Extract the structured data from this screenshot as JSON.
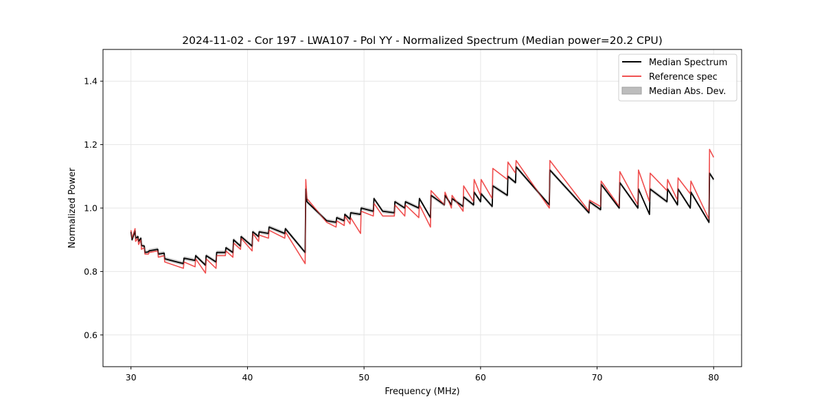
{
  "chart_data": {
    "type": "line",
    "title": "2024-11-02 - Cor 197 - LWA107 - Pol YY - Normalized Spectrum (Median power=20.2 CPU)",
    "xlabel": "Frequency (MHz)",
    "ylabel": "Normalized Power",
    "xlim": [
      27.6,
      82.4
    ],
    "ylim": [
      0.5,
      1.5
    ],
    "x_ticks": [
      30,
      40,
      50,
      60,
      70,
      80
    ],
    "x_tick_labels": [
      "30",
      "40",
      "50",
      "60",
      "70",
      "80"
    ],
    "y_ticks": [
      0.6,
      0.8,
      1.0,
      1.2,
      1.4
    ],
    "y_tick_labels": [
      "0.6",
      "0.8",
      "1.0",
      "1.2",
      "1.4"
    ],
    "grid": true,
    "legend_position": "top-right",
    "legend": {
      "median": "Median Spectrum",
      "reference": "Reference spec",
      "mad": "Median Abs. Dev."
    },
    "colors": {
      "median": "#000000",
      "reference": "#f05050",
      "mad": "#bdbdbd",
      "grid": "#e6e6e6"
    },
    "mad_halfwidth": 0.006,
    "series": [
      {
        "name": "Median Spectrum",
        "x": [
          30.0,
          30.1,
          30.35,
          30.4,
          30.6,
          30.65,
          30.85,
          30.9,
          31.15,
          31.2,
          31.5,
          31.55,
          32.3,
          32.35,
          32.85,
          32.9,
          34.5,
          34.55,
          35.5,
          35.55,
          36.4,
          36.45,
          37.3,
          37.35,
          38.1,
          38.15,
          38.75,
          38.8,
          39.4,
          39.45,
          40.4,
          40.45,
          40.95,
          41.0,
          41.8,
          41.85,
          43.2,
          43.25,
          44.95,
          45.0,
          45.1,
          46.8,
          47.6,
          47.65,
          48.3,
          48.35,
          48.8,
          48.85,
          49.7,
          49.75,
          50.8,
          50.85,
          51.6,
          52.6,
          52.65,
          53.5,
          53.55,
          54.7,
          54.75,
          55.7,
          55.75,
          56.9,
          56.95,
          57.5,
          57.55,
          58.5,
          58.55,
          59.4,
          59.45,
          60.0,
          60.05,
          61.0,
          61.05,
          62.3,
          62.35,
          63.0,
          63.05,
          65.9,
          65.95,
          69.3,
          69.35,
          70.3,
          70.35,
          71.9,
          71.95,
          73.5,
          73.55,
          74.5,
          74.55,
          76.0,
          76.05,
          76.9,
          76.95,
          78.0,
          78.05,
          79.6,
          79.65,
          80.0
        ],
        "values": [
          0.925,
          0.9,
          0.928,
          0.905,
          0.91,
          0.895,
          0.905,
          0.882,
          0.88,
          0.86,
          0.862,
          0.865,
          0.87,
          0.855,
          0.858,
          0.84,
          0.825,
          0.842,
          0.835,
          0.85,
          0.82,
          0.85,
          0.83,
          0.86,
          0.86,
          0.875,
          0.86,
          0.9,
          0.88,
          0.91,
          0.88,
          0.925,
          0.91,
          0.925,
          0.92,
          0.94,
          0.92,
          0.935,
          0.86,
          1.06,
          1.02,
          0.96,
          0.955,
          0.97,
          0.96,
          0.98,
          0.965,
          0.985,
          0.98,
          1.0,
          0.99,
          1.03,
          0.99,
          0.985,
          1.02,
          1.0,
          1.02,
          1.0,
          1.03,
          0.97,
          1.04,
          1.01,
          1.04,
          1.01,
          1.03,
          1.005,
          1.035,
          1.01,
          1.05,
          1.02,
          1.045,
          1.005,
          1.07,
          1.04,
          1.1,
          1.08,
          1.13,
          1.01,
          1.12,
          0.985,
          1.02,
          0.995,
          1.075,
          1.0,
          1.08,
          1.0,
          1.06,
          0.98,
          1.06,
          1.02,
          1.06,
          1.01,
          1.06,
          1.0,
          1.05,
          0.955,
          1.11,
          1.09
        ]
      },
      {
        "name": "Reference spec",
        "x": [
          30.0,
          30.1,
          30.35,
          30.4,
          30.6,
          30.65,
          30.85,
          30.9,
          31.15,
          31.2,
          31.5,
          31.55,
          32.3,
          32.35,
          32.85,
          32.9,
          34.5,
          34.55,
          35.5,
          35.55,
          36.4,
          36.45,
          37.3,
          37.35,
          38.1,
          38.15,
          38.75,
          38.8,
          39.4,
          39.45,
          40.4,
          40.45,
          40.95,
          41.0,
          41.8,
          41.85,
          43.2,
          43.25,
          44.95,
          45.0,
          45.1,
          46.8,
          47.6,
          47.65,
          48.3,
          48.35,
          48.8,
          48.85,
          49.7,
          49.75,
          50.8,
          50.85,
          51.6,
          52.6,
          52.65,
          53.5,
          53.55,
          54.7,
          54.75,
          55.7,
          55.75,
          56.9,
          56.95,
          57.5,
          57.55,
          58.5,
          58.55,
          59.4,
          59.45,
          60.0,
          60.05,
          61.0,
          61.05,
          62.3,
          62.35,
          63.0,
          63.05,
          65.9,
          65.95,
          69.3,
          69.35,
          70.3,
          70.35,
          71.9,
          71.95,
          73.5,
          73.55,
          74.5,
          74.55,
          76.0,
          76.05,
          76.9,
          76.95,
          78.0,
          78.05,
          79.6,
          79.65,
          80.0
        ],
        "values": [
          0.93,
          0.905,
          0.935,
          0.895,
          0.905,
          0.885,
          0.9,
          0.87,
          0.875,
          0.855,
          0.855,
          0.86,
          0.865,
          0.845,
          0.85,
          0.83,
          0.81,
          0.83,
          0.815,
          0.84,
          0.795,
          0.84,
          0.81,
          0.85,
          0.85,
          0.865,
          0.845,
          0.89,
          0.87,
          0.905,
          0.865,
          0.92,
          0.895,
          0.915,
          0.905,
          0.93,
          0.905,
          0.925,
          0.825,
          1.09,
          1.03,
          0.955,
          0.94,
          0.96,
          0.945,
          0.975,
          0.95,
          0.97,
          0.92,
          0.99,
          0.975,
          1.015,
          0.975,
          0.975,
          1.01,
          0.975,
          1.01,
          0.97,
          1.01,
          0.94,
          1.055,
          1.01,
          1.05,
          1.0,
          1.04,
          0.99,
          1.07,
          1.02,
          1.09,
          1.04,
          1.09,
          1.03,
          1.125,
          1.09,
          1.145,
          1.11,
          1.15,
          1.0,
          1.15,
          0.99,
          1.025,
          1.005,
          1.085,
          1.005,
          1.115,
          1.01,
          1.12,
          1.02,
          1.11,
          1.055,
          1.09,
          1.025,
          1.095,
          1.045,
          1.085,
          0.965,
          1.185,
          1.16
        ]
      }
    ]
  }
}
